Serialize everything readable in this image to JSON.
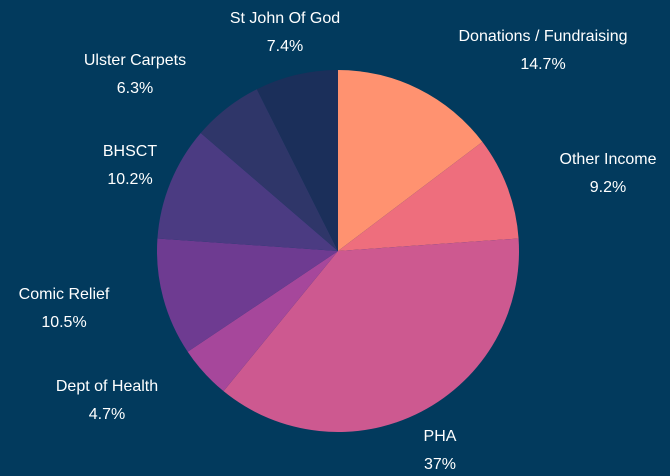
{
  "chart_data": {
    "type": "pie",
    "categories": [
      "Donations / Fundraising",
      "Other Income",
      "PHA",
      "Dept of Health",
      "Comic Relief",
      "BHSCT",
      "Ulster Carpets",
      "St John Of God"
    ],
    "values": [
      14.7,
      9.2,
      37,
      4.7,
      10.5,
      10.2,
      6.3,
      7.4
    ],
    "value_labels": [
      "14.7%",
      "9.2%",
      "37%",
      "4.7%",
      "10.5%",
      "10.2%",
      "6.3%",
      "7.4%"
    ],
    "colors": [
      "#ff9270",
      "#ee6e7d",
      "#cd5990",
      "#a6479b",
      "#6e3b91",
      "#4b3b82",
      "#2f3669",
      "#1b2f5a"
    ]
  }
}
